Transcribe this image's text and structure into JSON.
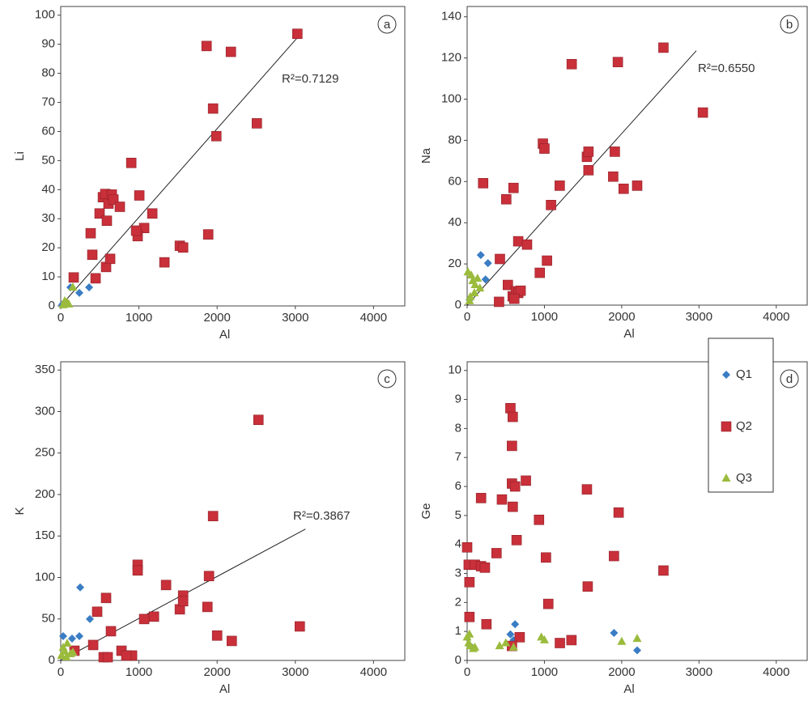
{
  "chart_data": [
    {
      "type": "scatter",
      "panel_label": "a",
      "x_label": "Al",
      "y_label": "Li",
      "annotation": "R²=0.7129",
      "xlim": [
        0,
        4400
      ],
      "ylim": [
        0,
        103
      ],
      "xticks": [
        0,
        1000,
        2000,
        3000,
        4000
      ],
      "yticks": [
        0,
        10,
        20,
        30,
        40,
        50,
        60,
        70,
        80,
        90,
        100
      ],
      "series": [
        {
          "color": "#3a7dc4",
          "marker": "diamond",
          "x": [
            124,
            238,
            363,
            20
          ],
          "values": [
            6.4,
            4.5,
            6.4,
            0.5
          ]
        },
        {
          "color": "#c9303a",
          "marker": "square",
          "x": [
            1865,
            2176,
            3026,
            1948,
            1990,
            2508,
            1886,
            902,
            1005,
            1171,
            1067,
            984,
            964,
            1326,
            1523,
            1565,
            166,
            383,
            404,
            446,
            497,
            539,
            570,
            590,
            580,
            611,
            632,
            653,
            674,
            756
          ],
          "values": [
            89.4,
            87.4,
            93.6,
            67.9,
            58.4,
            62.8,
            24.6,
            49.2,
            38,
            31.8,
            26.8,
            24,
            25.9,
            15,
            20.7,
            20.1,
            9.8,
            25,
            17.6,
            9.5,
            31.8,
            37.4,
            38.5,
            29.3,
            13.4,
            35.2,
            16.2,
            38.3,
            36.6,
            34.1
          ]
        },
        {
          "color": "#9bbb3c",
          "marker": "triangle",
          "x": [
            155,
            52,
            103,
            31,
            83
          ],
          "values": [
            6.4,
            1.7,
            0.6,
            0.3,
            1.1
          ]
        }
      ],
      "trendline": {
        "x": [
          0,
          3050
        ],
        "values": [
          0,
          93
        ]
      }
    },
    {
      "type": "scatter",
      "panel_label": "b",
      "x_label": "Al",
      "y_label": "Na",
      "annotation": "R²=0.6550",
      "xlim": [
        0,
        4400
      ],
      "ylim": [
        0,
        145
      ],
      "xticks": [
        0,
        1000,
        2000,
        3000,
        4000
      ],
      "yticks": [
        0,
        20,
        40,
        60,
        80,
        100,
        120,
        140
      ],
      "series": [
        {
          "color": "#3a7dc4",
          "marker": "diamond",
          "x": [
            176,
            269,
            238,
            31
          ],
          "values": [
            24.3,
            20.4,
            12.5,
            2.7
          ]
        },
        {
          "color": "#c9303a",
          "marker": "square",
          "x": [
            1353,
            1950,
            2540,
            3050,
            980,
            1000,
            1550,
            1570,
            1570,
            1911,
            1890,
            2025,
            2200,
            1198,
            1085,
            600,
            506,
            207,
            661,
            775,
            1033,
            940,
            424,
            413,
            527,
            589,
            630,
            661,
            692,
            610
          ],
          "values": [
            117,
            118,
            125,
            93.5,
            78.4,
            76,
            72,
            74.5,
            65.5,
            74.5,
            62.4,
            56.5,
            58,
            58,
            48.6,
            56.9,
            51.4,
            59.2,
            31,
            29.4,
            21.6,
            15.7,
            22.4,
            1.6,
            9.8,
            4.3,
            6.7,
            5.9,
            7,
            3.1
          ]
        },
        {
          "color": "#9bbb3c",
          "marker": "triangle",
          "x": [
            52,
            72,
            103,
            134,
            165,
            93,
            31,
            10,
            40
          ],
          "values": [
            14.5,
            11.8,
            9.8,
            12.9,
            8.2,
            5.9,
            2,
            16,
            4
          ]
        }
      ],
      "trendline": {
        "x": [
          0,
          2965
        ],
        "values": [
          0,
          123.5
        ]
      }
    },
    {
      "type": "scatter",
      "panel_label": "c",
      "x_label": "Al",
      "y_label": "K",
      "annotation": "R²=0.3867",
      "xlim": [
        0,
        4400
      ],
      "ylim": [
        0,
        360
      ],
      "xticks": [
        0,
        1000,
        2000,
        3000,
        4000
      ],
      "yticks": [
        0,
        50,
        100,
        150,
        200,
        250,
        300,
        350
      ],
      "series": [
        {
          "color": "#3a7dc4",
          "marker": "diamond",
          "x": [
            249,
            373,
            238,
            145,
            31
          ],
          "values": [
            88,
            49.9,
            29.3,
            26.4,
            29.3
          ]
        },
        {
          "color": "#c9303a",
          "marker": "square",
          "x": [
            2528,
            1948,
            1896,
            1876,
            3057,
            2000,
            2187,
            1523,
            1565,
            1565,
            1347,
            1192,
            1067,
            984,
            984,
            580,
            466,
            642,
            415,
            176,
            549,
            601,
            777,
            912,
            839
          ],
          "values": [
            290,
            174,
            101.7,
            64.5,
            41,
            30,
            23.5,
            61.6,
            78.2,
            71.4,
            90.9,
            52.8,
            49.9,
            115.3,
            108.5,
            75.3,
            58.7,
            35.2,
            18.6,
            11.7,
            3.9,
            3.9,
            11.7,
            5.9,
            5.9
          ]
        },
        {
          "color": "#9bbb3c",
          "marker": "triangle",
          "x": [
            31,
            52,
            83,
            155,
            10,
            73,
            124
          ],
          "values": [
            15.6,
            10.8,
            20.5,
            9.8,
            5.9,
            3.9,
            7.8
          ]
        }
      ],
      "trendline": {
        "x": [
          0,
          3130
        ],
        "values": [
          0,
          158.4
        ]
      }
    },
    {
      "type": "scatter",
      "panel_label": "d",
      "x_label": "Al",
      "y_label": "Ge",
      "legend": "upper right",
      "xlim": [
        0,
        4400
      ],
      "ylim": [
        0,
        10.3
      ],
      "xticks": [
        0,
        1000,
        2000,
        3000,
        4000
      ],
      "yticks": [
        0,
        1,
        2,
        3,
        4,
        5,
        6,
        7,
        8,
        9,
        10
      ],
      "series": [
        {
          "name": "Q1",
          "color": "#3a7dc4",
          "marker": "diamond",
          "x": [
            560,
            620,
            1900,
            2200,
            40,
            600
          ],
          "values": [
            0.9,
            1.25,
            0.95,
            0.35,
            0.5,
            0.7
          ]
        },
        {
          "name": "Q2",
          "color": "#c9303a",
          "marker": "square",
          "x": [
            560,
            590,
            580,
            580,
            620,
            760,
            590,
            180,
            450,
            930,
            1550,
            1960,
            640,
            0,
            20,
            100,
            180,
            230,
            380,
            30,
            1020,
            1560,
            1900,
            2540,
            1050,
            30,
            250,
            680,
            1200,
            1350,
            580
          ],
          "values": [
            8.7,
            8.4,
            7.4,
            6.1,
            6.0,
            6.2,
            5.3,
            5.6,
            5.55,
            4.85,
            5.9,
            5.1,
            4.15,
            3.9,
            3.3,
            3.3,
            3.25,
            3.2,
            3.7,
            2.7,
            3.55,
            2.55,
            3.6,
            3.1,
            1.95,
            1.5,
            1.25,
            0.8,
            0.6,
            0.7,
            0.5
          ]
        },
        {
          "name": "Q3",
          "color": "#9bbb3c",
          "marker": "triangle",
          "x": [
            0,
            20,
            40,
            80,
            100,
            30,
            420,
            500,
            600,
            960,
            1000,
            2000,
            2200
          ],
          "values": [
            0.8,
            0.6,
            0.5,
            0.4,
            0.45,
            0.9,
            0.5,
            0.6,
            0.45,
            0.8,
            0.7,
            0.65,
            0.75
          ]
        }
      ]
    }
  ]
}
